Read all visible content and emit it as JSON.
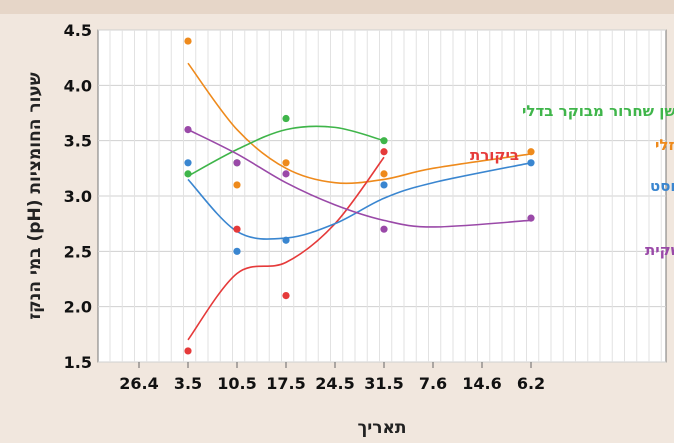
{
  "chart_data": {
    "type": "scatter",
    "title": "",
    "xlabel": "תאריך",
    "ylabel": "שעור החומציות (pH) במי הנקז",
    "ylim": [
      1.5,
      4.5
    ],
    "yticks": [
      "1.5",
      "2.0",
      "2.5",
      "3.0",
      "3.5",
      "4.0",
      "4.5"
    ],
    "xticks": [
      "26.4",
      "3.5",
      "10.5",
      "17.5",
      "24.5",
      "31.5",
      "7.6",
      "14.6",
      "6.2"
    ],
    "grid": true,
    "legend": "labels next to curves",
    "series": [
      {
        "name": "הומוס נוזלי",
        "color": "#ee8a1c",
        "points": [
          [
            "3.5",
            4.4
          ],
          [
            "10.5",
            3.1
          ],
          [
            "17.5",
            3.3
          ],
          [
            "31.5",
            3.2
          ],
          [
            "6.2",
            3.4
          ]
        ],
        "curve": [
          [
            "3.5",
            4.2
          ],
          [
            "10.5",
            3.6
          ],
          [
            "17.5",
            3.25
          ],
          [
            "24.5",
            3.12
          ],
          [
            "31.5",
            3.15
          ],
          [
            "7.6",
            3.25
          ],
          [
            "6.2",
            3.38
          ]
        ]
      },
      {
        "name": "ביקורת",
        "color": "#e53a3a",
        "points": [
          [
            "3.5",
            1.6
          ],
          [
            "10.5",
            2.7
          ],
          [
            "17.5",
            2.1
          ],
          [
            "31.5",
            3.4
          ]
        ],
        "curve": [
          [
            "3.5",
            1.7
          ],
          [
            "10.5",
            2.3
          ],
          [
            "17.5",
            2.4
          ],
          [
            "24.5",
            2.75
          ],
          [
            "31.5",
            3.35
          ]
        ]
      },
      {
        "name": "דשן שחרור מבוקר בדלי",
        "color": "#3fb54a",
        "points": [
          [
            "3.5",
            3.2
          ],
          [
            "10.5",
            3.3
          ],
          [
            "17.5",
            3.7
          ],
          [
            "31.5",
            3.5
          ]
        ],
        "curve": [
          [
            "3.5",
            3.18
          ],
          [
            "10.5",
            3.42
          ],
          [
            "17.5",
            3.6
          ],
          [
            "24.5",
            3.62
          ],
          [
            "31.5",
            3.5
          ]
        ]
      },
      {
        "name": "קומפוסט",
        "color": "#3a86d0",
        "points": [
          [
            "3.5",
            3.3
          ],
          [
            "10.5",
            2.5
          ],
          [
            "17.5",
            2.6
          ],
          [
            "31.5",
            3.1
          ],
          [
            "6.2",
            3.3
          ]
        ],
        "curve": [
          [
            "3.5",
            3.15
          ],
          [
            "10.5",
            2.68
          ],
          [
            "17.5",
            2.62
          ],
          [
            "24.5",
            2.75
          ],
          [
            "31.5",
            2.98
          ],
          [
            "7.6",
            3.12
          ],
          [
            "6.2",
            3.3
          ]
        ]
      },
      {
        "name": "דשן שחרור מבוקר שקית",
        "color": "#9a49a8",
        "points": [
          [
            "3.5",
            3.6
          ],
          [
            "10.5",
            3.3
          ],
          [
            "17.5",
            3.2
          ],
          [
            "31.5",
            2.7
          ],
          [
            "6.2",
            2.8
          ]
        ],
        "curve": [
          [
            "3.5",
            3.6
          ],
          [
            "10.5",
            3.38
          ],
          [
            "17.5",
            3.12
          ],
          [
            "24.5",
            2.92
          ],
          [
            "31.5",
            2.78
          ],
          [
            "7.6",
            2.72
          ],
          [
            "6.2",
            2.78
          ]
        ]
      }
    ]
  }
}
